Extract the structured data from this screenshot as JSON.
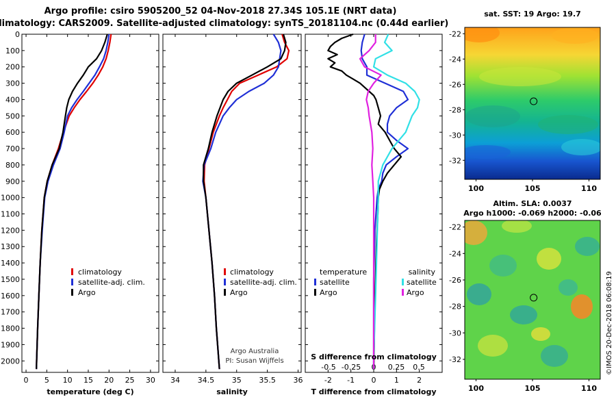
{
  "header": {
    "line1": "Argo profile: csiro 5905200_52 04-Nov-2018 27.34S 105.1E (NRT data)",
    "line2": "Climatology: CARS2009. Satellite-adjusted climatology: synTS_20181104.nc (0.44d earlier)"
  },
  "credits": {
    "institution": "Argo Australia",
    "pi": "PI: Susan Wijffels",
    "imos": "©IMOS 20-Dec-2018 06:08:19"
  },
  "colors": {
    "climatology": "#e00000",
    "satellite": "#1f2fd6",
    "argo": "#000000",
    "satellite_salinity": "#30e0e6",
    "argo_salinity": "#e020e0"
  },
  "chart_data": [
    {
      "id": "temperature",
      "type": "line",
      "xlabel": "temperature (deg C)",
      "ylabel": "",
      "xlim": [
        -1,
        32
      ],
      "ylim": [
        2070,
        0
      ],
      "xticks": [
        0,
        5,
        10,
        15,
        20,
        25,
        30
      ],
      "yticks": [
        0,
        100,
        200,
        300,
        400,
        500,
        600,
        700,
        800,
        900,
        1000,
        1100,
        1200,
        1300,
        1400,
        1500,
        1600,
        1700,
        1800,
        1900,
        2000
      ],
      "legend": [
        "climatology",
        "satellite-adj. clim.",
        "Argo"
      ],
      "series": [
        {
          "name": "climatology",
          "color": "#e00000",
          "depth": [
            0,
            50,
            100,
            150,
            200,
            250,
            300,
            350,
            400,
            450,
            500,
            600,
            700,
            800,
            900,
            1000,
            1200,
            1400,
            1600,
            1800,
            2000,
            2050
          ],
          "values": [
            20.5,
            20.2,
            19.8,
            19.3,
            18.5,
            17.4,
            16.1,
            14.6,
            13.0,
            11.6,
            10.4,
            9.0,
            7.8,
            6.3,
            5.1,
            4.4,
            3.8,
            3.4,
            3.1,
            2.8,
            2.55,
            2.5
          ]
        },
        {
          "name": "satellite-adj. clim.",
          "color": "#1f2fd6",
          "depth": [
            0,
            50,
            100,
            150,
            200,
            250,
            300,
            350,
            400,
            450,
            500,
            600,
            700,
            800,
            900,
            1000,
            1200,
            1400,
            1600,
            1800,
            2000,
            2050
          ],
          "values": [
            20.0,
            19.7,
            19.3,
            18.7,
            17.7,
            16.6,
            15.2,
            13.8,
            12.3,
            11.0,
            10.0,
            9.2,
            8.2,
            6.6,
            5.3,
            4.5,
            3.9,
            3.4,
            3.1,
            2.8,
            2.55,
            2.5
          ]
        },
        {
          "name": "Argo",
          "color": "#000000",
          "depth": [
            0,
            50,
            100,
            150,
            200,
            250,
            300,
            350,
            400,
            450,
            500,
            600,
            700,
            800,
            900,
            1000,
            1200,
            1400,
            1600,
            1800,
            2000,
            2050
          ],
          "values": [
            19.6,
            19.0,
            18.2,
            17.0,
            15.0,
            13.8,
            12.4,
            11.2,
            10.3,
            9.8,
            9.5,
            8.9,
            8.0,
            6.3,
            5.1,
            4.4,
            3.8,
            3.4,
            3.1,
            2.8,
            2.55,
            2.5
          ]
        }
      ]
    },
    {
      "id": "salinity",
      "type": "line",
      "xlabel": "salinity",
      "ylabel": "",
      "xlim": [
        33.8,
        36.05
      ],
      "ylim": [
        2070,
        0
      ],
      "xticks": [
        34,
        34.5,
        35,
        35.5,
        36
      ],
      "xticklabels": [
        "34",
        "34.5",
        "35",
        "35.5",
        "36"
      ],
      "legend": [
        "climatology",
        "satellite-adj. clim.",
        "Argo"
      ],
      "series": [
        {
          "name": "climatology",
          "color": "#e00000",
          "depth": [
            0,
            50,
            100,
            150,
            200,
            250,
            300,
            350,
            400,
            450,
            500,
            600,
            700,
            800,
            900,
            1000,
            1200,
            1400,
            1600,
            1800,
            2000,
            2050
          ],
          "values": [
            35.74,
            35.78,
            35.85,
            35.82,
            35.65,
            35.35,
            35.05,
            34.92,
            34.85,
            34.78,
            34.72,
            34.62,
            34.55,
            34.48,
            34.47,
            34.5,
            34.55,
            34.6,
            34.64,
            34.67,
            34.71,
            34.72
          ]
        },
        {
          "name": "satellite-adj. clim.",
          "color": "#1f2fd6",
          "depth": [
            0,
            50,
            100,
            150,
            200,
            250,
            300,
            350,
            400,
            450,
            500,
            600,
            700,
            800,
            900,
            1000,
            1200,
            1400,
            1600,
            1800,
            2000,
            2050
          ],
          "values": [
            35.6,
            35.68,
            35.72,
            35.7,
            35.68,
            35.6,
            35.45,
            35.2,
            35.0,
            34.88,
            34.78,
            34.66,
            34.58,
            34.47,
            34.45,
            34.5,
            34.55,
            34.6,
            34.64,
            34.67,
            34.71,
            34.72
          ]
        },
        {
          "name": "Argo",
          "color": "#000000",
          "depth": [
            0,
            50,
            100,
            150,
            200,
            250,
            300,
            350,
            400,
            450,
            500,
            600,
            700,
            800,
            900,
            1000,
            1200,
            1400,
            1600,
            1800,
            2000,
            2050
          ],
          "values": [
            35.76,
            35.8,
            35.78,
            35.72,
            35.5,
            35.25,
            35.0,
            34.86,
            34.78,
            34.73,
            34.68,
            34.6,
            34.54,
            34.46,
            34.46,
            34.5,
            34.55,
            34.6,
            34.64,
            34.67,
            34.71,
            34.72
          ]
        }
      ]
    },
    {
      "id": "difference",
      "type": "line",
      "xlabel": "T difference from climatology",
      "xlabel_top": "S difference from climatology",
      "xlim": [
        -3,
        3
      ],
      "ylim": [
        2070,
        0
      ],
      "xticks": [
        -2,
        -1,
        0,
        1,
        2
      ],
      "xticklabels": [
        "-2",
        "-1",
        "0",
        "1",
        "2"
      ],
      "sticks": [
        -0.5,
        -0.25,
        0,
        0.25,
        0.5
      ],
      "sticklabels": [
        "-0.5",
        "-0.25",
        "0",
        "0.25",
        "0.5"
      ],
      "legend": {
        "temperature_title": "temperature",
        "salinity_title": "salinity",
        "temperature": [
          "satellite",
          "Argo"
        ],
        "salinity": [
          "satellite",
          "Argo"
        ]
      },
      "series": [
        {
          "name": "temperature satellite",
          "color": "#1f2fd6",
          "depth": [
            0,
            50,
            100,
            150,
            200,
            250,
            300,
            350,
            400,
            450,
            500,
            550,
            600,
            650,
            700,
            750,
            800,
            850,
            900,
            950,
            1000,
            1200,
            1500,
            1800,
            2000,
            2050
          ],
          "values": [
            -0.4,
            -0.5,
            -0.55,
            -0.5,
            -0.3,
            -0.3,
            0.5,
            1.3,
            1.5,
            1.0,
            0.7,
            0.6,
            0.6,
            1.0,
            1.5,
            1.0,
            0.55,
            0.4,
            0.35,
            0.2,
            0.15,
            0.05,
            0.0,
            0.0,
            0.0,
            0.0
          ]
        },
        {
          "name": "temperature Argo",
          "color": "#000000",
          "depth": [
            0,
            25,
            50,
            75,
            100,
            125,
            150,
            175,
            200,
            225,
            250,
            275,
            300,
            325,
            350,
            375,
            400,
            450,
            500,
            550,
            600,
            650,
            700,
            750,
            800,
            850,
            900,
            950,
            1000,
            1100,
            1200,
            1300,
            1400,
            1500,
            1600,
            1700,
            1800,
            1900,
            2000,
            2050
          ],
          "values": [
            -0.9,
            -1.4,
            -1.7,
            -1.9,
            -2.0,
            -1.6,
            -2.0,
            -1.7,
            -1.9,
            -1.4,
            -1.2,
            -0.9,
            -0.6,
            -0.4,
            -0.2,
            0.0,
            0.1,
            0.2,
            0.3,
            0.2,
            0.5,
            0.7,
            0.9,
            1.2,
            0.9,
            0.6,
            0.4,
            0.25,
            0.2,
            0.18,
            0.15,
            0.12,
            0.1,
            0.08,
            0.06,
            0.04,
            0.03,
            0.02,
            0.01,
            0.0
          ]
        },
        {
          "name": "salinity satellite",
          "color": "#30e0e6",
          "depth": [
            0,
            50,
            100,
            150,
            200,
            250,
            300,
            350,
            400,
            450,
            500,
            600,
            700,
            800,
            900,
            1000,
            1200,
            1400,
            1600,
            1800,
            2000,
            2050
          ],
          "values": [
            0.16,
            0.12,
            0.2,
            0.02,
            0.0,
            0.15,
            0.35,
            0.45,
            0.5,
            0.48,
            0.42,
            0.35,
            0.2,
            0.1,
            0.05,
            0.05,
            0.04,
            0.03,
            0.02,
            0.01,
            0.0,
            0.0
          ]
        },
        {
          "name": "salinity Argo",
          "color": "#e020e0",
          "depth": [
            0,
            50,
            100,
            150,
            200,
            250,
            300,
            350,
            400,
            450,
            500,
            600,
            700,
            800,
            900,
            1000,
            1200,
            1400,
            1600,
            1800,
            2000,
            2050
          ],
          "values": [
            0.02,
            0.02,
            -0.05,
            -0.15,
            -0.1,
            0.08,
            0.0,
            -0.06,
            -0.08,
            -0.06,
            -0.05,
            -0.02,
            -0.01,
            -0.02,
            -0.01,
            0.0,
            0.0,
            0.0,
            0.0,
            0.0,
            0.0,
            0.0
          ]
        }
      ]
    }
  ],
  "maps": {
    "top": {
      "title": "sat. SST: 19 Argo: 19.7",
      "lat_ticks": [
        "-22",
        "-24",
        "-26",
        "-28",
        "-30",
        "-32"
      ],
      "lon_ticks": [
        "100",
        "105",
        "110"
      ]
    },
    "bottom": {
      "title1": "Altim. SLA: 0.0037",
      "title2": "Argo h1000: -0.069 h2000: -0.06",
      "lat_ticks": [
        "-22",
        "-24",
        "-26",
        "-28",
        "-30",
        "-32"
      ],
      "lon_ticks": [
        "100",
        "105",
        "110"
      ]
    },
    "float_position": {
      "lon": 105.1,
      "lat": -27.34
    },
    "lon_range": [
      99,
      111
    ],
    "lat_range": [
      -21.5,
      -33.5
    ]
  }
}
